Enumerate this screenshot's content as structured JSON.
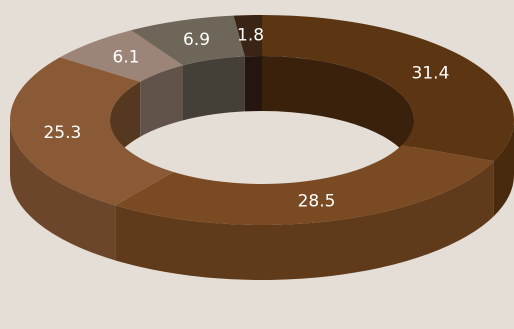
{
  "chart_data": {
    "type": "pie",
    "variant": "3d-donut",
    "slices": [
      {
        "label": "31.4",
        "value": 31.4,
        "color": "#5c3613"
      },
      {
        "label": "28.5",
        "value": 28.5,
        "color": "#7a4a22"
      },
      {
        "label": "25.3",
        "value": 25.3,
        "color": "#8a5a36"
      },
      {
        "label": "6.1",
        "value": 6.1,
        "color": "#9c8478"
      },
      {
        "label": "6.9",
        "value": 6.9,
        "color": "#6e6658"
      },
      {
        "label": "1.8",
        "value": 1.8,
        "color": "#3a2416"
      }
    ],
    "background": "#e5ded6"
  }
}
